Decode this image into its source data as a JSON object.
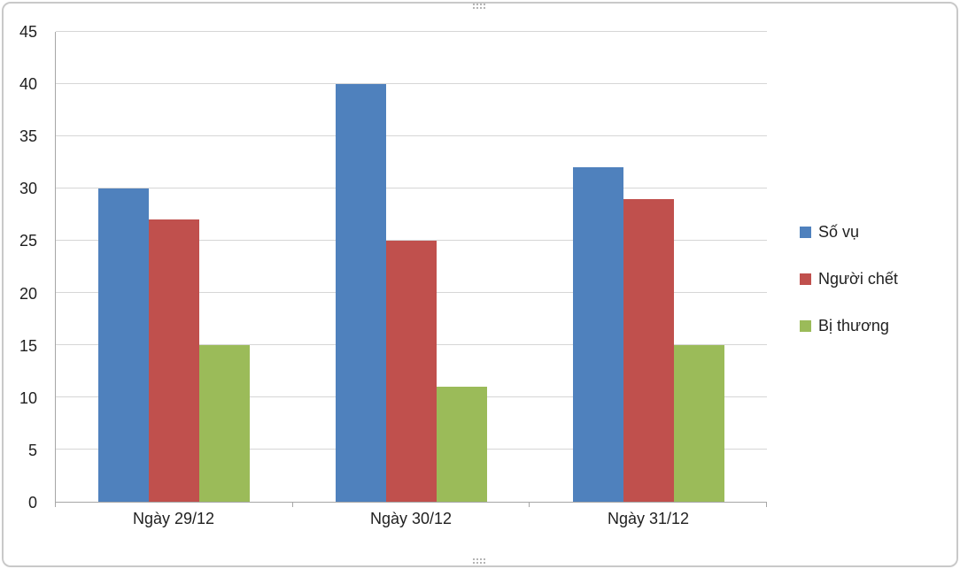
{
  "chart_data": {
    "type": "bar",
    "categories": [
      "Ngày 29/12",
      "Ngày 30/12",
      "Ngày 31/12"
    ],
    "series": [
      {
        "name": "Số vụ",
        "color": "#4F81BD",
        "values": [
          30,
          40,
          32
        ]
      },
      {
        "name": "Người chết",
        "color": "#C0504D",
        "values": [
          27,
          25,
          29
        ]
      },
      {
        "name": "Bị thương",
        "color": "#9BBB59",
        "values": [
          15,
          11,
          15
        ]
      }
    ],
    "title": "",
    "xlabel": "",
    "ylabel": "",
    "ylim": [
      0,
      45
    ],
    "ytick_step": 5,
    "grid": true,
    "legend_position": "right"
  },
  "colors": {
    "gridline": "#D6D6D6",
    "axis_line": "#A6A6A6",
    "text": "#1F1F1F",
    "frame_border": "#C9C9C9"
  }
}
